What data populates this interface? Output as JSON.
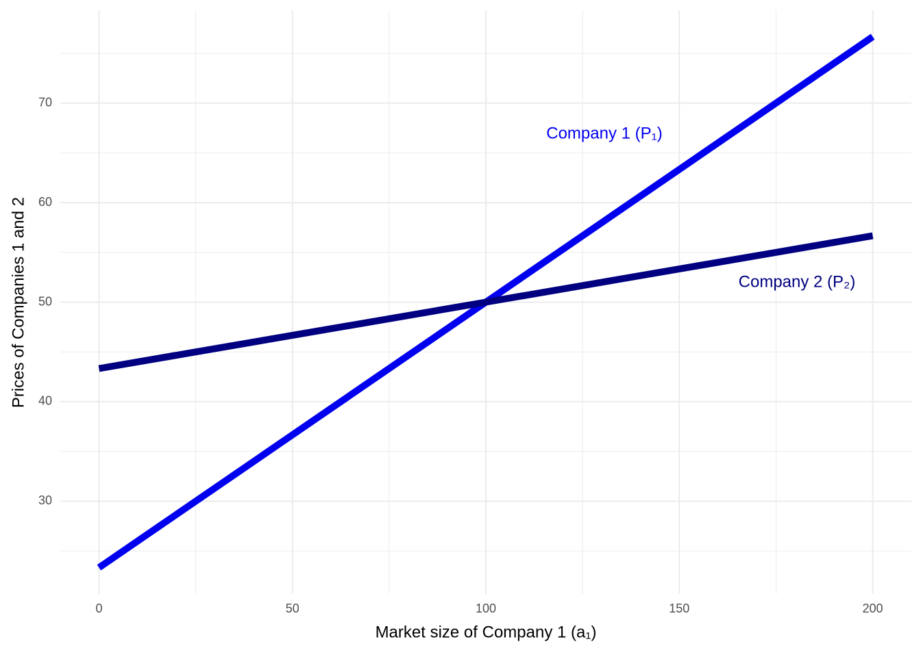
{
  "chart_data": {
    "type": "line",
    "x_label": "Market size of Company 1  (a₁)",
    "y_label": "Prices of Companies 1 and 2",
    "x": [
      0,
      100,
      200
    ],
    "series": [
      {
        "name": "Company 1 (P₁)",
        "color": "#0000ee",
        "values": [
          23.33,
          50,
          76.67
        ]
      },
      {
        "name": "Company 2 (P₂)",
        "color": "#000080",
        "values": [
          43.33,
          50,
          56.67
        ]
      }
    ],
    "xlim": [
      -10,
      210
    ],
    "ylim": [
      20.67,
      79.33
    ],
    "xticks": [
      0,
      50,
      100,
      150,
      200
    ],
    "yticks": [
      30,
      40,
      50,
      60,
      70
    ],
    "xminor": [
      25,
      75,
      125,
      175
    ],
    "yminor": [
      25,
      35,
      45,
      55,
      65,
      75
    ],
    "grid": true
  }
}
